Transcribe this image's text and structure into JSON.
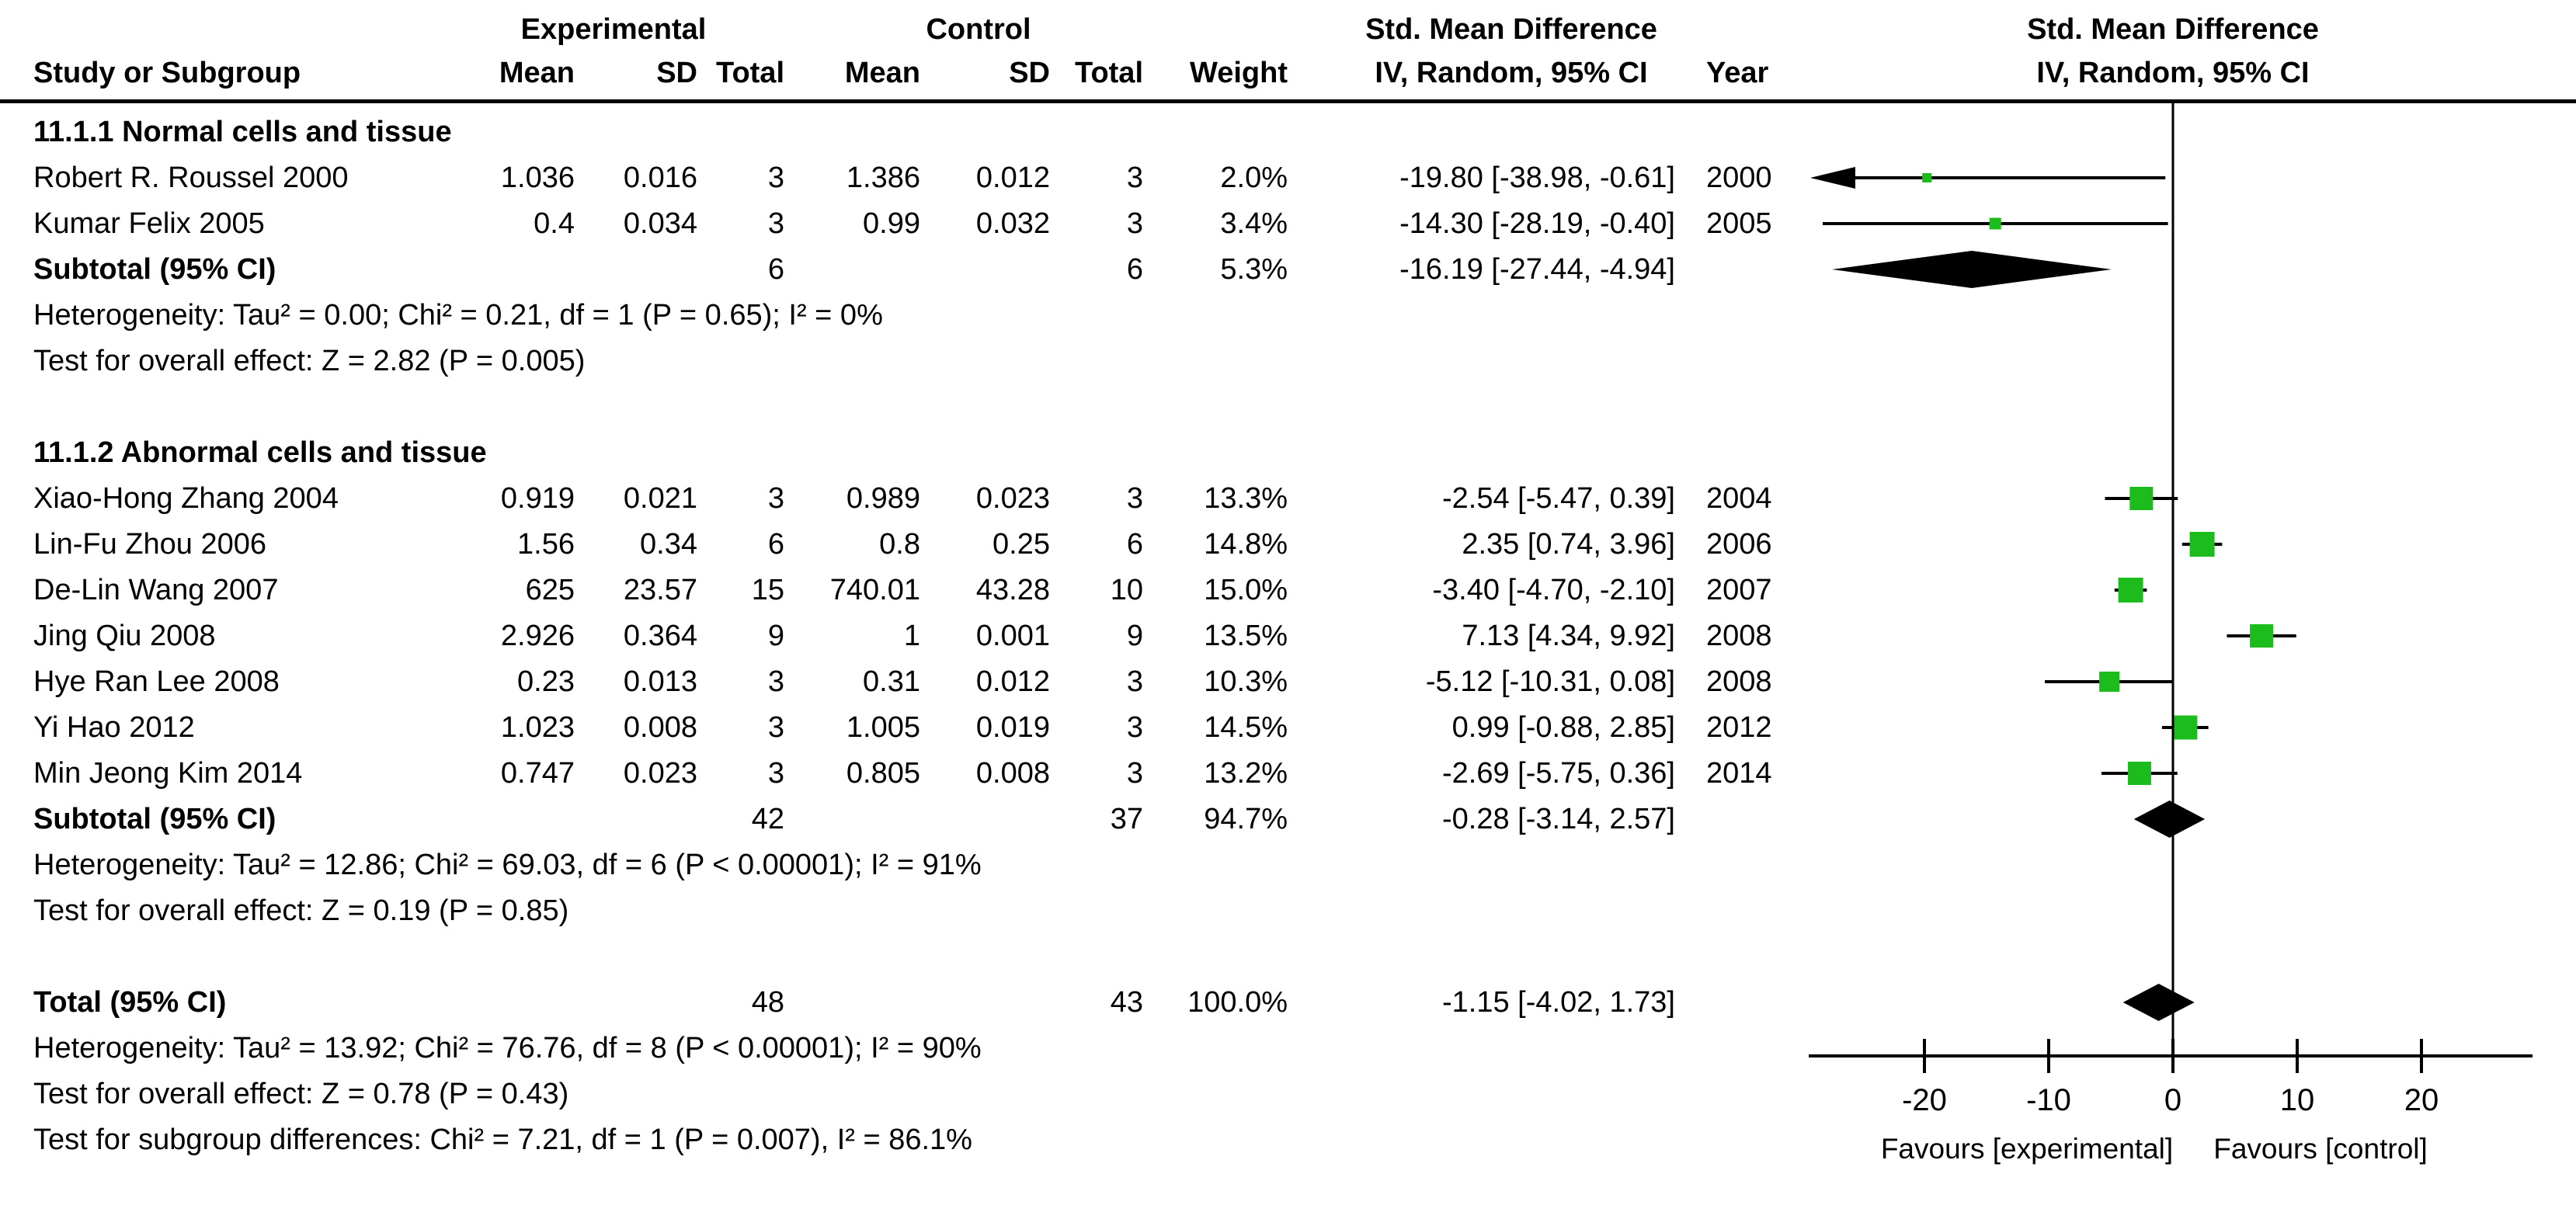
{
  "header": {
    "experimental": "Experimental",
    "control": "Control",
    "smd_left_line1": "Std. Mean Difference",
    "smd_left_line2": "IV, Random, 95% CI",
    "smd_right_line1": "Std. Mean Difference",
    "smd_right_line2": "IV, Random, 95% CI",
    "study_or_subgroup": "Study or Subgroup",
    "mean_exp": "Mean",
    "sd_exp": "SD",
    "total_exp": "Total",
    "mean_ctl": "Mean",
    "sd_ctl": "SD",
    "total_ctl": "Total",
    "weight": "Weight",
    "year": "Year"
  },
  "chart_data": {
    "type": "scatter",
    "chart_kind": "forest-plot-meta-analysis",
    "effect_measure": "Std. Mean Difference",
    "method": "IV, Random, 95% CI",
    "xlim": [
      -29.3,
      28.9
    ],
    "x_ticks": [
      -20,
      -10,
      0,
      10,
      20
    ],
    "favours_left": "Favours [experimental]",
    "favours_right": "Favours [control]",
    "marker_color": "#1cbc1c",
    "line_color": "#000000",
    "diamond_color": "#000000",
    "grid": false,
    "groups": [
      {
        "title": "11.1.1 Normal cells and tissue",
        "studies": [
          {
            "name": "Robert R. Roussel 2000",
            "mean_e": "1.036",
            "sd_e": "0.016",
            "n_e": "3",
            "mean_c": "1.386",
            "sd_c": "0.012",
            "n_c": "3",
            "weight": "2.0%",
            "ci_text": "-19.80 [-38.98, -0.61]",
            "year": "2000",
            "est": -19.8,
            "lo": -38.98,
            "hi": -0.61,
            "w": 2.0
          },
          {
            "name": "Kumar Felix 2005",
            "mean_e": "0.4",
            "sd_e": "0.034",
            "n_e": "3",
            "mean_c": "0.99",
            "sd_c": "0.032",
            "n_c": "3",
            "weight": "3.4%",
            "ci_text": "-14.30 [-28.19, -0.40]",
            "year": "2005",
            "est": -14.3,
            "lo": -28.19,
            "hi": -0.4,
            "w": 3.4
          }
        ],
        "subtotal": {
          "label": "Subtotal (95% CI)",
          "n_e": "6",
          "n_c": "6",
          "weight": "5.3%",
          "ci_text": "-16.19 [-27.44, -4.94]",
          "est": -16.19,
          "lo": -27.44,
          "hi": -4.94
        },
        "heterogeneity": "Heterogeneity: Tau² = 0.00; Chi² = 0.21, df = 1 (P = 0.65); I² = 0%",
        "overall_effect": "Test for overall effect: Z = 2.82 (P = 0.005)"
      },
      {
        "title": "11.1.2 Abnormal cells and tissue",
        "studies": [
          {
            "name": "Xiao-Hong Zhang 2004",
            "mean_e": "0.919",
            "sd_e": "0.021",
            "n_e": "3",
            "mean_c": "0.989",
            "sd_c": "0.023",
            "n_c": "3",
            "weight": "13.3%",
            "ci_text": "-2.54 [-5.47, 0.39]",
            "year": "2004",
            "est": -2.54,
            "lo": -5.47,
            "hi": 0.39,
            "w": 13.3
          },
          {
            "name": "Lin-Fu Zhou 2006",
            "mean_e": "1.56",
            "sd_e": "0.34",
            "n_e": "6",
            "mean_c": "0.8",
            "sd_c": "0.25",
            "n_c": "6",
            "weight": "14.8%",
            "ci_text": "2.35 [0.74, 3.96]",
            "year": "2006",
            "est": 2.35,
            "lo": 0.74,
            "hi": 3.96,
            "w": 14.8
          },
          {
            "name": "De-Lin Wang 2007",
            "mean_e": "625",
            "sd_e": "23.57",
            "n_e": "15",
            "mean_c": "740.01",
            "sd_c": "43.28",
            "n_c": "10",
            "weight": "15.0%",
            "ci_text": "-3.40 [-4.70, -2.10]",
            "year": "2007",
            "est": -3.4,
            "lo": -4.7,
            "hi": -2.1,
            "w": 15.0
          },
          {
            "name": "Jing Qiu 2008",
            "mean_e": "2.926",
            "sd_e": "0.364",
            "n_e": "9",
            "mean_c": "1",
            "sd_c": "0.001",
            "n_c": "9",
            "weight": "13.5%",
            "ci_text": "7.13 [4.34, 9.92]",
            "year": "2008",
            "est": 7.13,
            "lo": 4.34,
            "hi": 9.92,
            "w": 13.5
          },
          {
            "name": "Hye Ran Lee 2008",
            "mean_e": "0.23",
            "sd_e": "0.013",
            "n_e": "3",
            "mean_c": "0.31",
            "sd_c": "0.012",
            "n_c": "3",
            "weight": "10.3%",
            "ci_text": "-5.12 [-10.31, 0.08]",
            "year": "2008",
            "est": -5.12,
            "lo": -10.31,
            "hi": 0.08,
            "w": 10.3
          },
          {
            "name": "Yi Hao 2012",
            "mean_e": "1.023",
            "sd_e": "0.008",
            "n_e": "3",
            "mean_c": "1.005",
            "sd_c": "0.019",
            "n_c": "3",
            "weight": "14.5%",
            "ci_text": "0.99 [-0.88, 2.85]",
            "year": "2012",
            "est": 0.99,
            "lo": -0.88,
            "hi": 2.85,
            "w": 14.5
          },
          {
            "name": "Min Jeong Kim 2014",
            "mean_e": "0.747",
            "sd_e": "0.023",
            "n_e": "3",
            "mean_c": "0.805",
            "sd_c": "0.008",
            "n_c": "3",
            "weight": "13.2%",
            "ci_text": "-2.69 [-5.75, 0.36]",
            "year": "2014",
            "est": -2.69,
            "lo": -5.75,
            "hi": 0.36,
            "w": 13.2
          }
        ],
        "subtotal": {
          "label": "Subtotal (95% CI)",
          "n_e": "42",
          "n_c": "37",
          "weight": "94.7%",
          "ci_text": "-0.28 [-3.14, 2.57]",
          "est": -0.28,
          "lo": -3.14,
          "hi": 2.57
        },
        "heterogeneity": "Heterogeneity: Tau² = 12.86; Chi² = 69.03, df = 6 (P < 0.00001); I² = 91%",
        "overall_effect": "Test for overall effect: Z = 0.19 (P = 0.85)"
      }
    ],
    "total": {
      "label": "Total (95% CI)",
      "n_e": "48",
      "n_c": "43",
      "weight": "100.0%",
      "ci_text": "-1.15 [-4.02, 1.73]",
      "est": -1.15,
      "lo": -4.02,
      "hi": 1.73
    },
    "total_heterogeneity": "Heterogeneity: Tau² = 13.92; Chi² = 76.76, df = 8 (P < 0.00001); I² = 90%",
    "total_overall_effect": "Test for overall effect: Z = 0.78 (P = 0.43)",
    "subgroup_differences": "Test for subgroup differences: Chi² = 7.21, df = 1 (P = 0.007), I² = 86.1%"
  }
}
